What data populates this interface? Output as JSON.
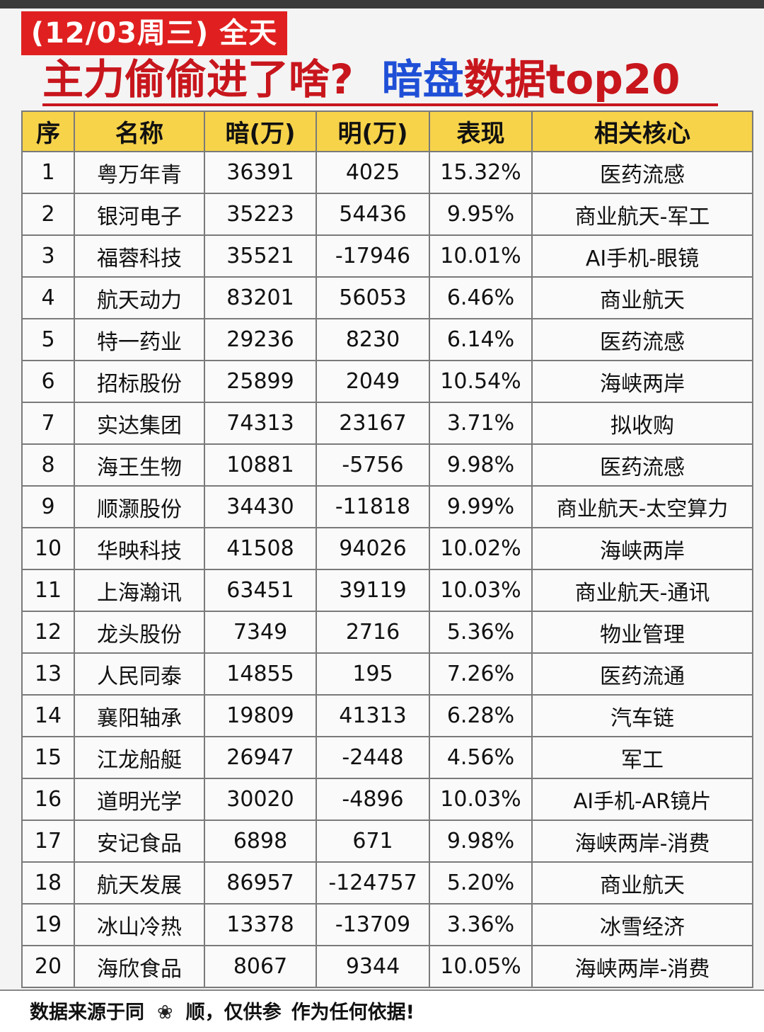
{
  "header": {
    "date_badge": "(12/03周三) 全天",
    "title_part1": "主力偷偷进了啥?",
    "title_part2": "暗盘",
    "title_part3": "数据top20"
  },
  "table": {
    "columns": [
      "序",
      "名称",
      "暗(万)",
      "明(万)",
      "表现",
      "相关核心"
    ],
    "rows": [
      {
        "idx": "1",
        "name": "粤万年青",
        "an": "36391",
        "ming": "4025",
        "perf": "15.32%",
        "core": "医药流感"
      },
      {
        "idx": "2",
        "name": "银河电子",
        "an": "35223",
        "ming": "54436",
        "perf": "9.95%",
        "core": "商业航天-军工"
      },
      {
        "idx": "3",
        "name": "福蓉科技",
        "an": "35521",
        "ming": "-17946",
        "perf": "10.01%",
        "core": "AI手机-眼镜"
      },
      {
        "idx": "4",
        "name": "航天动力",
        "an": "83201",
        "ming": "56053",
        "perf": "6.46%",
        "core": "商业航天"
      },
      {
        "idx": "5",
        "name": "特一药业",
        "an": "29236",
        "ming": "8230",
        "perf": "6.14%",
        "core": "医药流感"
      },
      {
        "idx": "6",
        "name": "招标股份",
        "an": "25899",
        "ming": "2049",
        "perf": "10.54%",
        "core": "海峡两岸"
      },
      {
        "idx": "7",
        "name": "实达集团",
        "an": "74313",
        "ming": "23167",
        "perf": "3.71%",
        "core": "拟收购"
      },
      {
        "idx": "8",
        "name": "海王生物",
        "an": "10881",
        "ming": "-5756",
        "perf": "9.98%",
        "core": "医药流感"
      },
      {
        "idx": "9",
        "name": "顺灏股份",
        "an": "34430",
        "ming": "-11818",
        "perf": "9.99%",
        "core": "商业航天-太空算力"
      },
      {
        "idx": "10",
        "name": "华映科技",
        "an": "41508",
        "ming": "94026",
        "perf": "10.02%",
        "core": "海峡两岸"
      },
      {
        "idx": "11",
        "name": "上海瀚讯",
        "an": "63451",
        "ming": "39119",
        "perf": "10.03%",
        "core": "商业航天-通讯"
      },
      {
        "idx": "12",
        "name": "龙头股份",
        "an": "7349",
        "ming": "2716",
        "perf": "5.36%",
        "core": "物业管理"
      },
      {
        "idx": "13",
        "name": "人民同泰",
        "an": "14855",
        "ming": "195",
        "perf": "7.26%",
        "core": "医药流通"
      },
      {
        "idx": "14",
        "name": "襄阳轴承",
        "an": "19809",
        "ming": "41313",
        "perf": "6.28%",
        "core": "汽车链"
      },
      {
        "idx": "15",
        "name": "江龙船艇",
        "an": "26947",
        "ming": "-2448",
        "perf": "4.56%",
        "core": "军工"
      },
      {
        "idx": "16",
        "name": "道明光学",
        "an": "30020",
        "ming": "-4896",
        "perf": "10.03%",
        "core": "AI手机-AR镜片"
      },
      {
        "idx": "17",
        "name": "安记食品",
        "an": "6898",
        "ming": "671",
        "perf": "9.98%",
        "core": "海峡两岸-消费"
      },
      {
        "idx": "18",
        "name": "航天发展",
        "an": "86957",
        "ming": "-124757",
        "perf": "5.20%",
        "core": "商业航天"
      },
      {
        "idx": "19",
        "name": "冰山冷热",
        "an": "13378",
        "ming": "-13709",
        "perf": "3.36%",
        "core": "冰雪经济"
      },
      {
        "idx": "20",
        "name": "海欣食品",
        "an": "8067",
        "ming": "9344",
        "perf": "10.05%",
        "core": "海峡两岸-消费"
      }
    ]
  },
  "footer": {
    "source_prefix": "数据来源于同",
    "flower_icon": "flower-icon",
    "source_suffix": "顺，仅供参",
    "disclaimer_end": "作为任何依据!"
  },
  "colors": {
    "badge_red": "#e02020",
    "title_red": "#c8161d",
    "title_blue": "#1f4fd6",
    "header_yellow": "#f7d34a",
    "positive_red": "#d91c24",
    "negative_green": "#2a8a2a",
    "core_blue": "#1e63b0"
  }
}
